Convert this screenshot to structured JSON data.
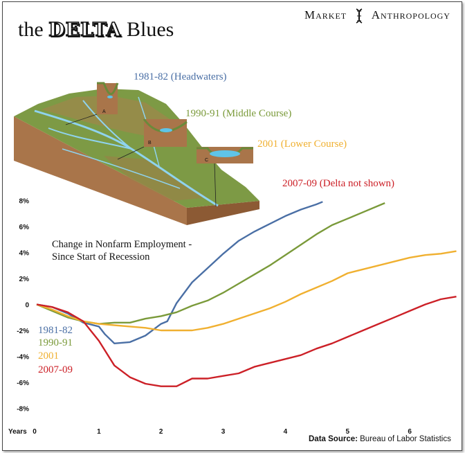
{
  "header": {
    "title_prefix": "the",
    "title_emphasis": "DELTA",
    "title_suffix": "Blues",
    "brand_left": "Market",
    "brand_right": "Anthropology",
    "brand_icon": "dna-helix-icon"
  },
  "stages": [
    {
      "label": "1981-82 (Headwaters)",
      "color": "#4a6fa5"
    },
    {
      "label": "1990-91 (Middle Course)",
      "color": "#7a9a3a"
    },
    {
      "label": "2001 (Lower Course)",
      "color": "#f0b030"
    },
    {
      "label": "2007-09 (Delta not shown)",
      "color": "#cc2027"
    }
  ],
  "illustration": {
    "cross_sections": [
      "A",
      "B",
      "C"
    ]
  },
  "subtitle": [
    "Change in Nonfarm Employment -",
    "Since Start of Recession"
  ],
  "source": {
    "label": "Data Source:",
    "value": "Bureau of Labor Statistics"
  },
  "chart_data": {
    "type": "line",
    "xlabel": "Years",
    "xlim": [
      0,
      6.8
    ],
    "ylim": [
      -8.5,
      8.5
    ],
    "x_ticks": [
      0,
      1,
      2,
      3,
      4,
      5,
      6
    ],
    "y_ticks": [
      8,
      6,
      4,
      2,
      0,
      -2,
      -4,
      -6,
      -8
    ],
    "y_tick_labels": [
      "8%",
      "6%",
      "4%",
      "2%",
      "0",
      "-2%",
      "-4%",
      "-6%",
      "-8%"
    ],
    "legend_position": "left",
    "series": [
      {
        "name": "1981-82",
        "color": "#4a6fa5",
        "x": [
          0,
          0.25,
          0.5,
          0.75,
          1.0,
          1.1,
          1.25,
          1.5,
          1.75,
          2.0,
          2.1,
          2.25,
          2.5,
          2.75,
          3.0,
          3.25,
          3.5,
          3.75,
          4.0,
          4.25,
          4.5,
          4.6
        ],
        "y": [
          0,
          -0.2,
          -0.7,
          -1.4,
          -1.7,
          -2.3,
          -3.0,
          -2.9,
          -2.4,
          -1.5,
          -1.3,
          0.1,
          1.7,
          2.8,
          3.9,
          4.9,
          5.6,
          6.2,
          6.8,
          7.3,
          7.7,
          7.9
        ]
      },
      {
        "name": "1990-91",
        "color": "#7a9a3a",
        "x": [
          0,
          0.25,
          0.5,
          0.75,
          1.0,
          1.25,
          1.5,
          1.75,
          2.0,
          2.25,
          2.5,
          2.75,
          3.0,
          3.25,
          3.5,
          3.75,
          4.0,
          4.25,
          4.5,
          4.75,
          5.0,
          5.25,
          5.5,
          5.6
        ],
        "y": [
          0,
          -0.5,
          -1.0,
          -1.3,
          -1.5,
          -1.4,
          -1.4,
          -1.1,
          -0.9,
          -0.6,
          -0.1,
          0.3,
          0.9,
          1.6,
          2.3,
          3.0,
          3.8,
          4.6,
          5.4,
          6.1,
          6.6,
          7.1,
          7.6,
          7.8
        ]
      },
      {
        "name": "2001",
        "color": "#f0b030",
        "x": [
          0,
          0.25,
          0.5,
          0.75,
          1.0,
          1.25,
          1.5,
          1.75,
          2.0,
          2.25,
          2.5,
          2.75,
          3.0,
          3.25,
          3.5,
          3.75,
          4.0,
          4.25,
          4.5,
          4.75,
          5.0,
          5.25,
          5.5,
          5.75,
          6.0,
          6.25,
          6.5,
          6.75
        ],
        "y": [
          0,
          -0.4,
          -0.9,
          -1.3,
          -1.5,
          -1.6,
          -1.7,
          -1.8,
          -2.0,
          -2.0,
          -2.0,
          -1.8,
          -1.5,
          -1.1,
          -0.7,
          -0.3,
          0.2,
          0.8,
          1.3,
          1.8,
          2.4,
          2.7,
          3.0,
          3.3,
          3.6,
          3.8,
          3.9,
          4.1
        ]
      },
      {
        "name": "2007-09",
        "color": "#cc2027",
        "x": [
          0,
          0.25,
          0.5,
          0.75,
          1.0,
          1.25,
          1.5,
          1.75,
          2.0,
          2.25,
          2.5,
          2.75,
          3.0,
          3.25,
          3.5,
          3.75,
          4.0,
          4.25,
          4.5,
          4.75,
          5.0,
          5.25,
          5.5,
          5.75,
          6.0,
          6.25,
          6.5,
          6.75
        ],
        "y": [
          0,
          -0.2,
          -0.6,
          -1.3,
          -2.8,
          -4.7,
          -5.6,
          -6.1,
          -6.3,
          -6.3,
          -5.7,
          -5.7,
          -5.5,
          -5.3,
          -4.8,
          -4.5,
          -4.2,
          -3.9,
          -3.4,
          -3.0,
          -2.5,
          -2.0,
          -1.5,
          -1.0,
          -0.5,
          0,
          0.4,
          0.6
        ]
      }
    ]
  }
}
